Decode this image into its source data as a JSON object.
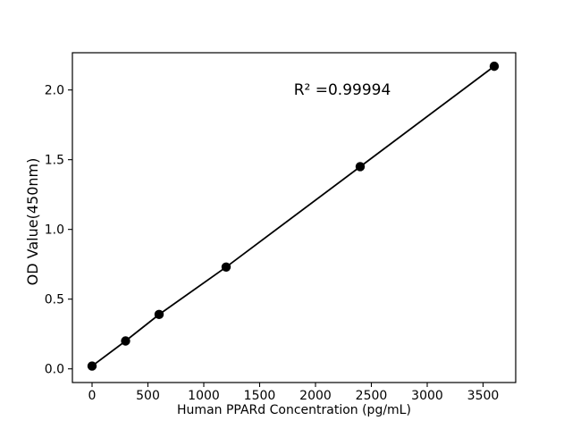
{
  "chart_data": {
    "type": "line",
    "title": "",
    "xlabel": "Human PPARd Concentration (pg/mL)",
    "ylabel": "OD Value(450nm)",
    "x": [
      0,
      300,
      600,
      1200,
      2400,
      3600
    ],
    "y": [
      0.02,
      0.2,
      0.39,
      0.73,
      1.45,
      2.17
    ],
    "annotation": {
      "text": "R² =0.99994"
    },
    "xlim": [
      -176,
      3792
    ],
    "ylim": [
      -0.098,
      2.267
    ],
    "xticks": {
      "values": [
        0,
        500,
        1000,
        1500,
        2000,
        2500,
        3000,
        3500
      ],
      "labels": [
        "0",
        "500",
        "1000",
        "1500",
        "2000",
        "2500",
        "3000",
        "3500"
      ]
    },
    "yticks": {
      "values": [
        0.0,
        0.5,
        1.0,
        1.5,
        2.0
      ],
      "labels": [
        "0.0",
        "0.5",
        "1.0",
        "1.5",
        "2.0"
      ]
    },
    "grid": false,
    "legend": "none",
    "marker": "circle",
    "colors": {
      "line": "#000000",
      "marker": "#000000",
      "spine": "#000000",
      "text": "#000000",
      "background": "#ffffff"
    }
  }
}
